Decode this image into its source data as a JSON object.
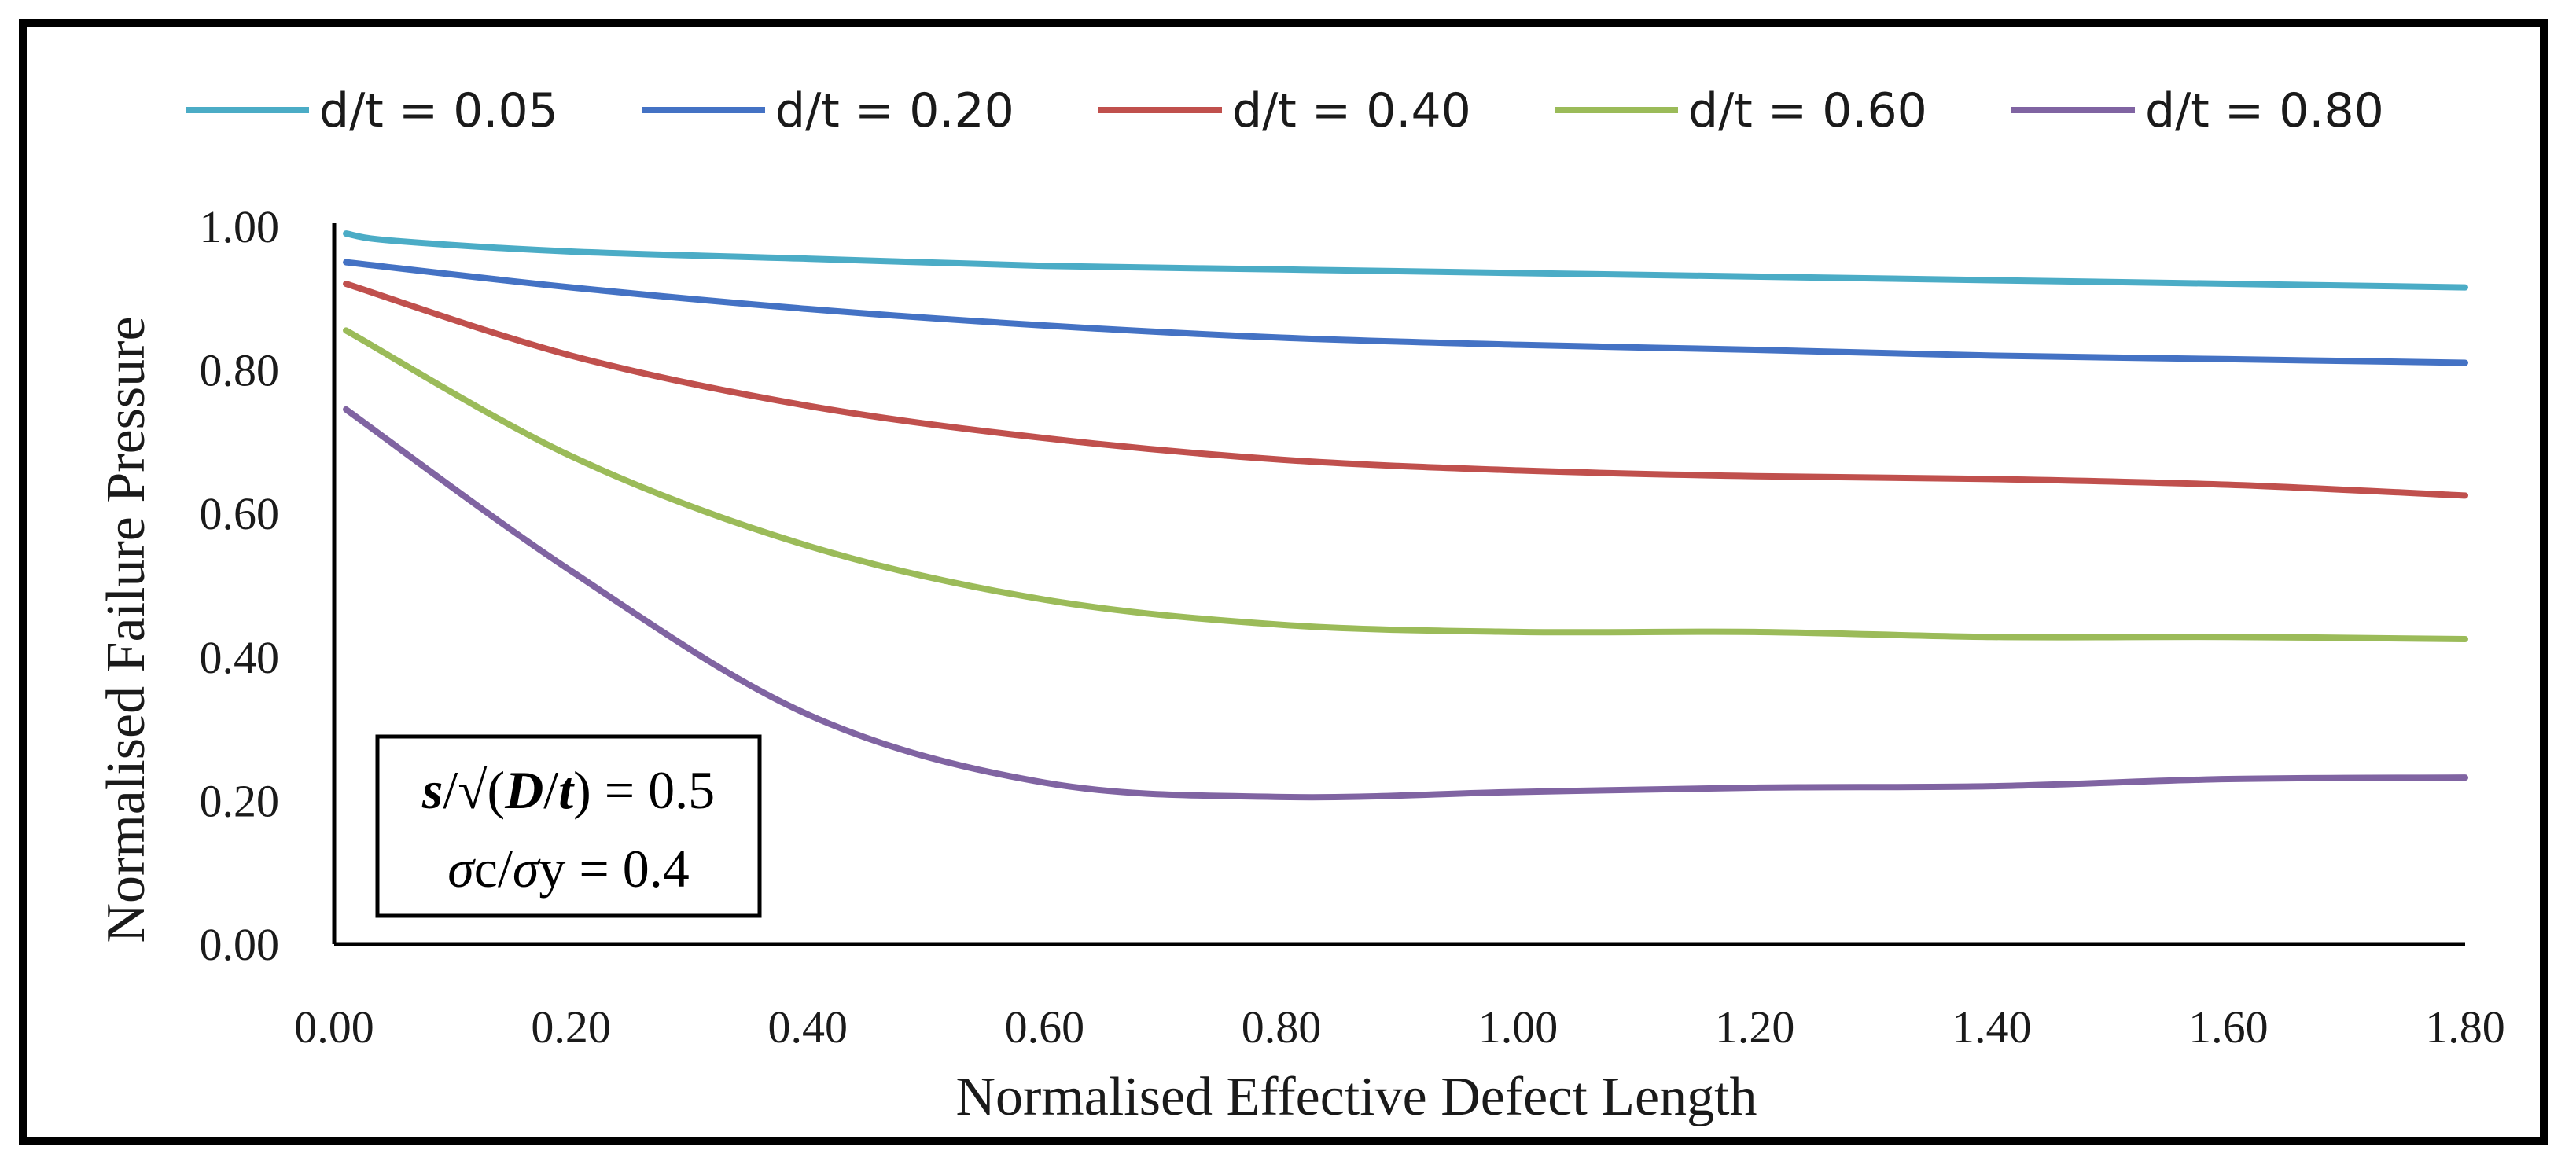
{
  "chart_data": {
    "type": "line",
    "title": "",
    "xlabel": "Normalised Effective Defect Length",
    "ylabel": "Normalised Failure Pressure",
    "xlim": [
      0,
      1.8
    ],
    "ylim": [
      0,
      1.0
    ],
    "x_ticks": [
      "0.00",
      "0.20",
      "0.40",
      "0.60",
      "0.80",
      "1.00",
      "1.20",
      "1.40",
      "1.60",
      "1.80"
    ],
    "y_ticks": [
      "0.00",
      "0.20",
      "0.40",
      "0.60",
      "0.80",
      "1.00"
    ],
    "legend_position": "top",
    "annotation": {
      "line1": {
        "s": "s",
        "slash": "/√(",
        "D": "D",
        "sep": "/",
        "t": "t",
        "close": ")",
        "value": " = 0.5"
      },
      "line2": {
        "sigma1": "σ",
        "c": "c/",
        "sigma2": "σ",
        "y": "y",
        "value": " = 0.4"
      }
    },
    "series": [
      {
        "name": "d/t = 0.05",
        "color": "#4bacc6",
        "x": [
          0.01,
          0.05,
          0.2,
          0.4,
          0.6,
          0.8,
          1.0,
          1.2,
          1.4,
          1.6,
          1.8
        ],
        "values": [
          0.99,
          0.98,
          0.965,
          0.955,
          0.945,
          0.94,
          0.935,
          0.93,
          0.925,
          0.92,
          0.915
        ]
      },
      {
        "name": "d/t = 0.20",
        "color": "#4472c4",
        "x": [
          0.01,
          0.2,
          0.4,
          0.6,
          0.8,
          1.0,
          1.2,
          1.4,
          1.6,
          1.8
        ],
        "values": [
          0.95,
          0.915,
          0.885,
          0.862,
          0.845,
          0.835,
          0.828,
          0.82,
          0.815,
          0.81
        ]
      },
      {
        "name": "d/t = 0.40",
        "color": "#c0504d",
        "x": [
          0.01,
          0.2,
          0.4,
          0.6,
          0.8,
          1.0,
          1.2,
          1.4,
          1.6,
          1.8
        ],
        "values": [
          0.92,
          0.82,
          0.75,
          0.705,
          0.675,
          0.66,
          0.652,
          0.648,
          0.64,
          0.625
        ]
      },
      {
        "name": "d/t = 0.60",
        "color": "#9bbb59",
        "x": [
          0.01,
          0.2,
          0.4,
          0.6,
          0.8,
          1.0,
          1.2,
          1.4,
          1.6,
          1.8
        ],
        "values": [
          0.855,
          0.68,
          0.555,
          0.48,
          0.445,
          0.435,
          0.435,
          0.428,
          0.428,
          0.425
        ]
      },
      {
        "name": "d/t = 0.80",
        "color": "#8064a2",
        "x": [
          0.01,
          0.2,
          0.4,
          0.6,
          0.8,
          1.0,
          1.2,
          1.4,
          1.6,
          1.8
        ],
        "values": [
          0.745,
          0.52,
          0.32,
          0.225,
          0.205,
          0.212,
          0.218,
          0.22,
          0.23,
          0.232
        ]
      }
    ]
  }
}
